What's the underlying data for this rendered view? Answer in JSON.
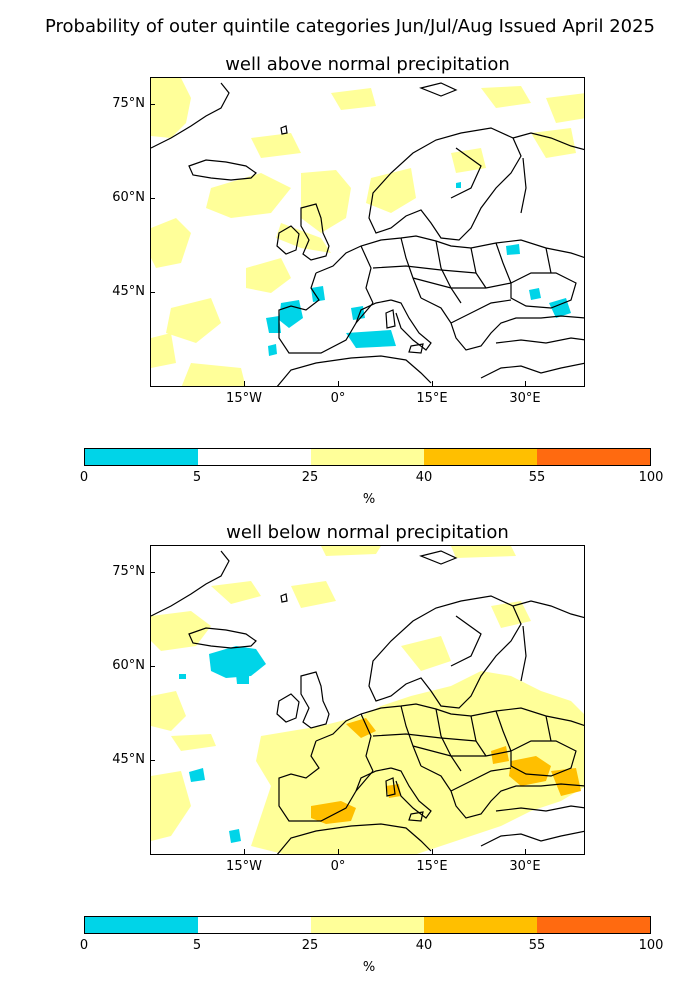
{
  "figure": {
    "suptitle": "Probability of outer quintile categories Jun/Jul/Aug Issued April 2025"
  },
  "panels": [
    {
      "title": "well above normal precipitation",
      "lat_labels": [
        "75°N",
        "60°N",
        "45°N"
      ],
      "lon_labels": [
        "15°W",
        "0°",
        "15°E",
        "30°E"
      ]
    },
    {
      "title": "well below normal precipitation",
      "lat_labels": [
        "75°N",
        "60°N",
        "45°N"
      ],
      "lon_labels": [
        "15°W",
        "0°",
        "15°E",
        "30°E"
      ]
    }
  ],
  "colorbar": {
    "boundaries": [
      "0",
      "5",
      "25",
      "40",
      "55",
      "100"
    ],
    "colors": [
      "#00d4e8",
      "#ffffff",
      "#ffff99",
      "#ffbf00",
      "#ff6a10"
    ],
    "unit": "%"
  },
  "map_colors": {
    "land_outline": "#000000",
    "low_prob": "#00d4e8",
    "prob_25_40": "#ffff99",
    "prob_40_55": "#ffbf00"
  }
}
